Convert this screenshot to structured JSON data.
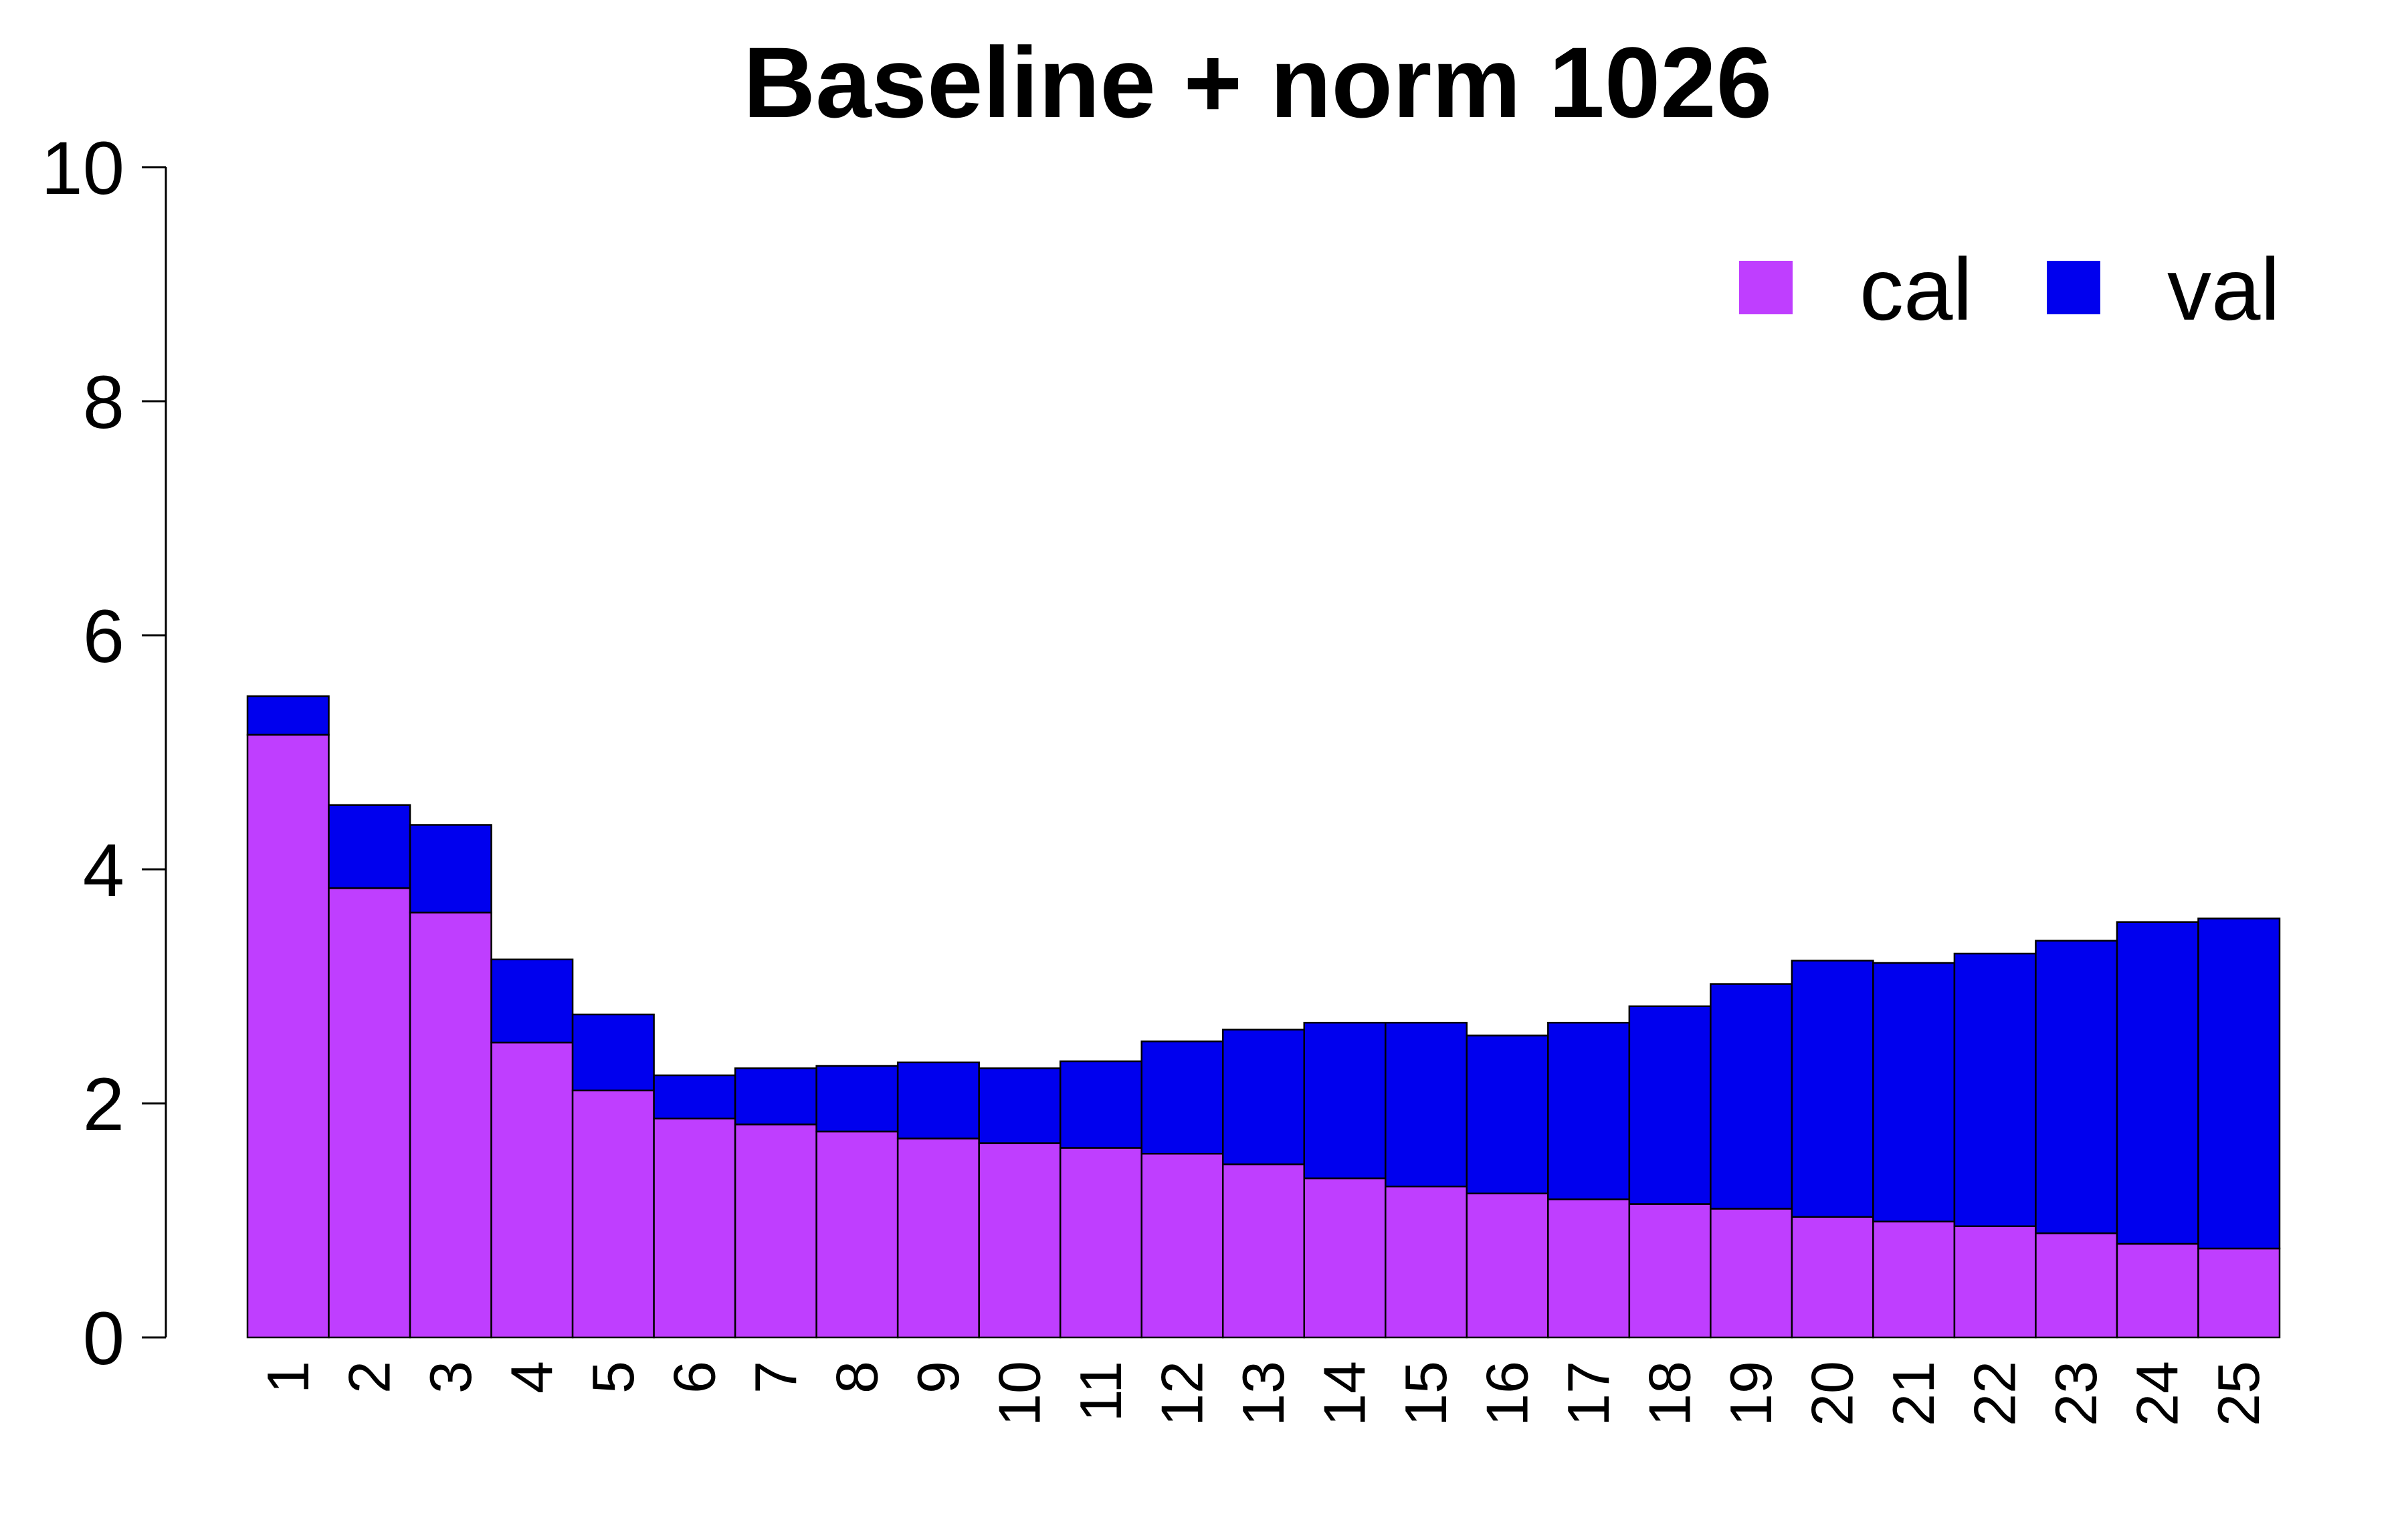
{
  "chart_data": {
    "type": "bar",
    "stacked": true,
    "title": "Baseline + norm 1026",
    "xlabel": "",
    "ylabel": "",
    "ylim": [
      0,
      10
    ],
    "yticks": [
      "0",
      "2",
      "4",
      "6",
      "8",
      "10"
    ],
    "categories": [
      "1",
      "2",
      "3",
      "4",
      "5",
      "6",
      "7",
      "8",
      "9",
      "10",
      "11",
      "12",
      "13",
      "14",
      "15",
      "16",
      "17",
      "18",
      "19",
      "20",
      "21",
      "22",
      "23",
      "24",
      "25"
    ],
    "series": [
      {
        "name": "cal",
        "color": "#bf3eff",
        "values": [
          5.15,
          3.84,
          3.63,
          2.52,
          2.11,
          1.87,
          1.82,
          1.76,
          1.7,
          1.66,
          1.62,
          1.57,
          1.48,
          1.36,
          1.29,
          1.23,
          1.18,
          1.14,
          1.1,
          1.03,
          0.99,
          0.95,
          0.89,
          0.8,
          0.76
        ]
      },
      {
        "name": "val",
        "color": "#0000ee",
        "values": [
          0.33,
          0.71,
          0.75,
          0.71,
          0.65,
          0.37,
          0.48,
          0.56,
          0.65,
          0.64,
          0.74,
          0.96,
          1.15,
          1.33,
          1.4,
          1.35,
          1.51,
          1.69,
          1.92,
          2.19,
          2.21,
          2.33,
          2.5,
          2.75,
          2.82
        ]
      }
    ],
    "legend": {
      "position": "top-right"
    },
    "grid": false
  }
}
